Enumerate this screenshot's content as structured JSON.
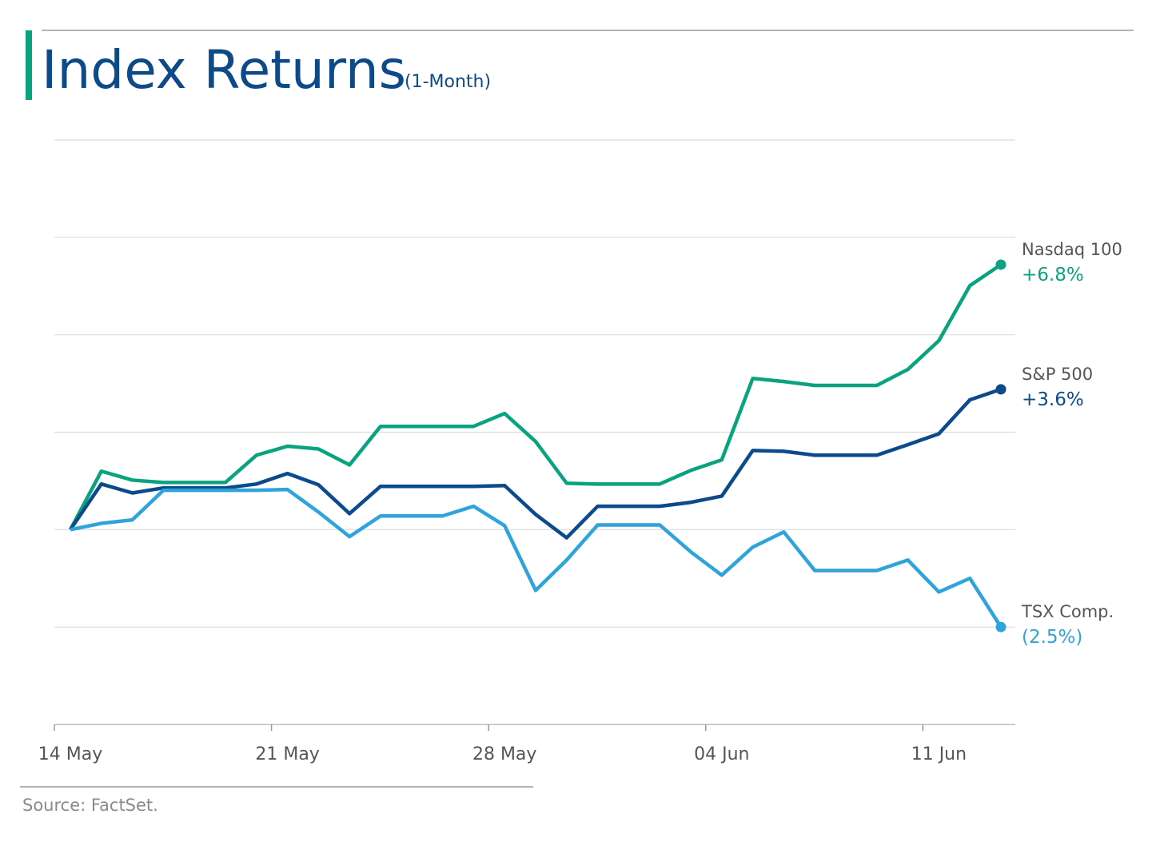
{
  "chart_data": {
    "type": "line",
    "title": "Index Returns",
    "subtitle": "(1-Month)",
    "source": "Source: FactSet.",
    "categories": [
      "14 May",
      null,
      null,
      null,
      null,
      null,
      null,
      "21 May",
      null,
      null,
      null,
      null,
      null,
      null,
      "28 May",
      null,
      null,
      null,
      null,
      null,
      null,
      "04 Jun",
      null,
      null,
      null,
      null,
      null,
      null,
      "11 Jun",
      null,
      null
    ],
    "ylim": [
      -5,
      10
    ],
    "yticks": [
      -5,
      -2.5,
      0,
      2.5,
      5,
      7.5,
      10
    ],
    "grid": true,
    "series": [
      {
        "name": "Nasdaq 100",
        "color": "#0aa37f",
        "values": [
          0,
          1.5,
          1.27,
          1.21,
          1.21,
          1.21,
          1.91,
          2.14,
          2.07,
          1.66,
          2.65,
          2.65,
          2.65,
          2.65,
          2.98,
          2.26,
          1.19,
          1.17,
          1.17,
          1.17,
          1.52,
          1.79,
          3.88,
          3.8,
          3.7,
          3.7,
          3.7,
          4.11,
          4.85,
          6.26,
          6.8
        ],
        "value_labels": [
          null,
          null,
          null,
          null,
          null,
          null,
          null,
          null,
          null,
          null,
          null,
          null,
          null,
          null,
          null,
          null,
          null,
          null,
          null,
          null,
          null,
          null,
          null,
          null,
          null,
          null,
          null,
          null,
          null,
          null,
          "+6.8%"
        ]
      },
      {
        "name": "S&P 500",
        "color": "#0b4a8b",
        "values": [
          0,
          1.17,
          0.94,
          1.07,
          1.07,
          1.07,
          1.17,
          1.44,
          1.15,
          0.41,
          1.11,
          1.11,
          1.11,
          1.11,
          1.13,
          0.39,
          -0.21,
          0.6,
          0.6,
          0.6,
          0.7,
          0.86,
          2.03,
          2.01,
          1.91,
          1.91,
          1.91,
          2.18,
          2.46,
          3.33,
          3.6
        ],
        "value_labels": [
          null,
          null,
          null,
          null,
          null,
          null,
          null,
          null,
          null,
          null,
          null,
          null,
          null,
          null,
          null,
          null,
          null,
          null,
          null,
          null,
          null,
          null,
          null,
          null,
          null,
          null,
          null,
          null,
          null,
          null,
          "+3.6%"
        ]
      },
      {
        "name": "TSX Comp.",
        "color": "#2fa4dc",
        "values": [
          0,
          0.16,
          0.25,
          1.01,
          1.01,
          1.01,
          1.01,
          1.03,
          0.45,
          -0.18,
          0.35,
          0.35,
          0.35,
          0.6,
          0.1,
          -1.56,
          -0.78,
          0.12,
          0.12,
          0.12,
          -0.57,
          -1.17,
          -0.45,
          -0.06,
          -1.05,
          -1.05,
          -1.05,
          -0.78,
          -1.6,
          -1.25,
          -2.5
        ],
        "value_labels": [
          null,
          null,
          null,
          null,
          null,
          null,
          null,
          null,
          null,
          null,
          null,
          null,
          null,
          null,
          null,
          null,
          null,
          null,
          null,
          null,
          null,
          null,
          null,
          null,
          null,
          null,
          null,
          null,
          null,
          null,
          "(2.5%)"
        ]
      }
    ]
  }
}
